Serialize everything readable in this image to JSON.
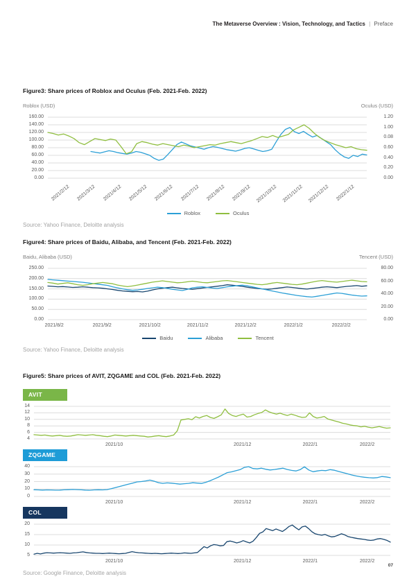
{
  "header": {
    "title": "The Metaverse Overview : Vision, Technology, and Tactics",
    "divider": "|",
    "section": "Preface"
  },
  "page_number": "07",
  "figure3": {
    "title": "Figure3: Share prices of Roblox and Oculus (Feb. 2021-Feb. 2022)",
    "left_axis_label": "Roblox (USD)",
    "right_axis_label": "Oculus (USD)",
    "source": "Source: Yahoo Finance, Deloitte analysis"
  },
  "figure4": {
    "title": "Figure4: Share prices of Baidu, Alibaba, and Tencent (Feb. 2021-Feb. 2022)",
    "left_axis_label": "Baidu, Alibaba (USD)",
    "right_axis_label": "Tencent (USD)",
    "source": "Source: Yahoo Finance, Deloitte analysis"
  },
  "figure5": {
    "title": "Figure5: Share prices of AVIT, ZQGAME and COL (Feb. 2021-Feb. 2022)",
    "source": "Source: Google Finance, Deloitte analysis",
    "badges": [
      {
        "label": "AVIT",
        "color": "#7AB648"
      },
      {
        "label": "ZQGAME",
        "color": "#1E9CD7"
      },
      {
        "label": "COL",
        "color": "#16365F"
      }
    ]
  },
  "colors": {
    "line_blue": "#2B9FD6",
    "line_green": "#8FBE3F",
    "line_navy": "#17456E",
    "grid": "#DCDCDC"
  },
  "chart_data": {
    "fig3": {
      "type": "line",
      "title": "Share prices of Roblox and Oculus (Feb. 2021-Feb. 2022)",
      "ymin": 0,
      "ymax": 160,
      "rmin": 0,
      "rmax": 1.2,
      "left_ticks": [
        "160.00",
        "140.00",
        "120.00",
        "100.00",
        "80.00",
        "60.00",
        "40.00",
        "20.00",
        "0.00"
      ],
      "right_ticks": [
        "1.20",
        "1.00",
        "0.08",
        "0.60",
        "0.40",
        "0.20",
        "0.00"
      ],
      "rotated": true,
      "x_labels": [
        {
          "t": "2021/2/12",
          "p": 0.065
        },
        {
          "t": "2021/3/12",
          "p": 0.146
        },
        {
          "t": "2021/4/12",
          "p": 0.228
        },
        {
          "t": "2021/5/12",
          "p": 0.309
        },
        {
          "t": "2021/6/12",
          "p": 0.39
        },
        {
          "t": "2021/7/12",
          "p": 0.472
        },
        {
          "t": "2021/8/12",
          "p": 0.553
        },
        {
          "t": "2021/9/12",
          "p": 0.634
        },
        {
          "t": "2021/10/12",
          "p": 0.715
        },
        {
          "t": "2021/11/12",
          "p": 0.797
        },
        {
          "t": "2021/12/12",
          "p": 0.878
        },
        {
          "t": "2022/1/12",
          "p": 0.959
        }
      ],
      "series": [
        {
          "name": "Roblox",
          "color": "#2B9FD6",
          "axis": "left",
          "xs": 0.135,
          "values": [
            70,
            68,
            66,
            69,
            72,
            70,
            67,
            65,
            63,
            66,
            70,
            68,
            64,
            60,
            52,
            47,
            50,
            62,
            75,
            88,
            95,
            90,
            85,
            82,
            79,
            76,
            80,
            83,
            81,
            78,
            75,
            73,
            71,
            74,
            78,
            80,
            77,
            73,
            70,
            72,
            76,
            96,
            115,
            128,
            133,
            122,
            117,
            123,
            115,
            108,
            112,
            104,
            96,
            88,
            75,
            64,
            56,
            52,
            60,
            57,
            63,
            61
          ]
        },
        {
          "name": "Oculus",
          "color": "#8FBE3F",
          "axis": "right",
          "xs": 0,
          "values": [
            0.9,
            0.88,
            0.85,
            0.87,
            0.83,
            0.78,
            0.7,
            0.66,
            0.72,
            0.78,
            0.76,
            0.74,
            0.77,
            0.75,
            0.62,
            0.48,
            0.52,
            0.68,
            0.72,
            0.7,
            0.67,
            0.65,
            0.68,
            0.66,
            0.64,
            0.62,
            0.65,
            0.63,
            0.6,
            0.62,
            0.64,
            0.66,
            0.65,
            0.68,
            0.7,
            0.72,
            0.7,
            0.68,
            0.71,
            0.74,
            0.78,
            0.82,
            0.8,
            0.84,
            0.8,
            0.83,
            0.86,
            0.95,
            1.0,
            1.05,
            0.98,
            0.88,
            0.8,
            0.74,
            0.7,
            0.66,
            0.63,
            0.6,
            0.62,
            0.58,
            0.56,
            0.55
          ]
        }
      ]
    },
    "fig4": {
      "type": "line",
      "title": "Share prices of Baidu, Alibaba, and Tencent (Feb. 2021-Feb. 2022)",
      "ymin": 0,
      "ymax": 250,
      "rmin": 0,
      "rmax": 80,
      "left_ticks": [
        "250.00",
        "200.00",
        "150.00",
        "100.00",
        "50.00",
        "0.00"
      ],
      "right_ticks": [
        "80.00",
        "60.00",
        "40.00",
        "20.00",
        "0.00"
      ],
      "rotated": false,
      "x_labels": [
        {
          "t": "2021/8/2",
          "p": 0.02
        },
        {
          "t": "2021/9/2",
          "p": 0.17
        },
        {
          "t": "2021/10/2",
          "p": 0.32
        },
        {
          "t": "2021/11/2",
          "p": 0.47
        },
        {
          "t": "2021/12/2",
          "p": 0.62
        },
        {
          "t": "2022/1/2",
          "p": 0.77
        },
        {
          "t": "2022/2/2",
          "p": 0.92
        }
      ],
      "series": [
        {
          "name": "Baidu",
          "color": "#17456E",
          "axis": "left",
          "xs": 0,
          "values": [
            164,
            162,
            160,
            161,
            159,
            157,
            158,
            160,
            158,
            156,
            155,
            153,
            150,
            147,
            143,
            140,
            138,
            136,
            137,
            135,
            139,
            145,
            150,
            153,
            156,
            158,
            155,
            152,
            150,
            148,
            151,
            154,
            157,
            160,
            163,
            166,
            170,
            168,
            165,
            162,
            158,
            155,
            152,
            150,
            148,
            150,
            153,
            156,
            159,
            157,
            154,
            151,
            149,
            152,
            155,
            158,
            160,
            158,
            156,
            159,
            162,
            164,
            166,
            163,
            165
          ]
        },
        {
          "name": "Alibaba",
          "color": "#2B9FD6",
          "axis": "left",
          "xs": 0,
          "values": [
            196,
            194,
            192,
            190,
            188,
            186,
            184,
            182,
            179,
            176,
            173,
            170,
            167,
            160,
            155,
            150,
            146,
            143,
            145,
            148,
            152,
            155,
            158,
            156,
            152,
            148,
            145,
            142,
            148,
            155,
            158,
            160,
            157,
            154,
            152,
            156,
            160,
            163,
            166,
            168,
            165,
            160,
            155,
            150,
            145,
            140,
            135,
            130,
            126,
            122,
            118,
            115,
            112,
            110,
            114,
            118,
            122,
            126,
            130,
            128,
            124,
            120,
            117,
            115,
            116
          ]
        },
        {
          "name": "Tencent",
          "color": "#8FBE3F",
          "axis": "right",
          "xs": 0,
          "values": [
            58,
            57,
            55.5,
            56.5,
            57.5,
            56,
            54.5,
            53.5,
            54.5,
            56,
            57,
            58,
            57,
            56,
            54,
            52.5,
            51.5,
            52.5,
            54,
            55.5,
            57,
            58.5,
            59.5,
            60.5,
            59.5,
            58.5,
            57.5,
            58,
            59,
            60,
            59,
            58,
            57.5,
            58.5,
            59.5,
            60.5,
            61,
            60,
            59,
            58,
            57,
            56,
            55,
            54.5,
            55.5,
            57,
            58,
            57,
            56,
            55,
            54.5,
            55.5,
            57,
            58.5,
            60,
            61,
            60,
            59,
            58.5,
            59.5,
            60.5,
            61.5,
            60.5,
            59.5,
            59
          ]
        }
      ]
    },
    "avit": {
      "type": "line",
      "title": "AVIT share price",
      "ymin": 4,
      "ymax": 14,
      "left_ticks": [
        "14",
        "12",
        "10",
        "8",
        "6",
        "4"
      ],
      "right_ticks": [],
      "rotated": false,
      "x_labels": [
        {
          "t": "2021/10",
          "p": 0.225
        },
        {
          "t": "2021/12",
          "p": 0.585
        },
        {
          "t": "2022/1",
          "p": 0.775
        },
        {
          "t": "2022/2",
          "p": 0.935
        }
      ],
      "series": [
        {
          "name": "AVIT",
          "color": "#8FBE3F",
          "axis": "left",
          "xs": 0,
          "values": [
            5.3,
            5.2,
            5.1,
            5.2,
            5.0,
            4.9,
            5.0,
            5.1,
            4.9,
            4.8,
            4.9,
            5.1,
            5.3,
            5.2,
            5.1,
            5.2,
            5.3,
            5.1,
            5.0,
            4.8,
            4.7,
            4.9,
            5.2,
            5.1,
            5.0,
            4.9,
            5.0,
            5.1,
            5.0,
            4.9,
            4.8,
            4.6,
            4.7,
            4.9,
            5.0,
            4.8,
            4.7,
            4.9,
            5.2,
            6.5,
            9.8,
            10.0,
            10.2,
            9.9,
            10.8,
            10.4,
            10.9,
            11.2,
            10.6,
            10.3,
            10.8,
            11.4,
            13.2,
            11.8,
            11.2,
            10.9,
            11.3,
            11.6,
            10.7,
            10.9,
            11.4,
            11.8,
            12.1,
            12.9,
            12.3,
            11.9,
            11.6,
            11.9,
            11.5,
            11.2,
            11.6,
            11.3,
            10.9,
            10.6,
            10.7,
            12.0,
            10.9,
            10.4,
            10.6,
            10.9,
            10.1,
            9.8,
            9.5,
            9.2,
            8.8,
            8.6,
            8.3,
            8.1,
            8.0,
            7.7,
            7.9,
            7.6,
            7.4,
            7.6,
            7.8,
            7.5,
            7.3,
            7.4
          ]
        }
      ]
    },
    "zqgame": {
      "type": "line",
      "title": "ZQGAME share price",
      "ymin": 0,
      "ymax": 40,
      "left_ticks": [
        "40",
        "30",
        "20",
        "10",
        "0"
      ],
      "right_ticks": [],
      "rotated": false,
      "x_labels": [
        {
          "t": "2021/10",
          "p": 0.225
        },
        {
          "t": "2021/12",
          "p": 0.585
        },
        {
          "t": "2022/1",
          "p": 0.775
        },
        {
          "t": "2022/2",
          "p": 0.935
        }
      ],
      "series": [
        {
          "name": "ZQGAME",
          "color": "#2B9FD6",
          "axis": "left",
          "xs": 0,
          "values": [
            9.0,
            8.8,
            8.6,
            8.8,
            8.7,
            8.5,
            8.6,
            8.9,
            9.1,
            9.4,
            9.2,
            8.9,
            8.6,
            8.4,
            8.8,
            9.0,
            8.8,
            9.2,
            10.5,
            12.0,
            13.5,
            15.0,
            16.5,
            18.0,
            19.5,
            20.0,
            20.8,
            22.0,
            20.5,
            18.5,
            17.6,
            18.2,
            17.9,
            17.2,
            16.6,
            17.1,
            17.6,
            18.4,
            18.0,
            17.5,
            19.0,
            21.0,
            23.5,
            26.0,
            29.0,
            32.0,
            33.0,
            34.5,
            36.0,
            39.0,
            40.0,
            37.5,
            37.0,
            38.0,
            36.5,
            35.5,
            36.2,
            37.0,
            38.0,
            36.2,
            35.0,
            34.2,
            36.0,
            39.8,
            35.5,
            33.2,
            34.2,
            35.0,
            34.6,
            36.0,
            35.2,
            33.5,
            32.0,
            30.5,
            28.8,
            27.5,
            26.5,
            25.8,
            25.2,
            24.8,
            25.3,
            26.8,
            26.2,
            25.2
          ]
        }
      ]
    },
    "col": {
      "type": "line",
      "title": "COL share price",
      "ymin": 5,
      "ymax": 20,
      "left_ticks": [
        "20",
        "15",
        "10",
        "5"
      ],
      "right_ticks": [],
      "rotated": false,
      "x_labels": [
        {
          "t": "2021/10",
          "p": 0.225
        },
        {
          "t": "2021/12",
          "p": 0.585
        },
        {
          "t": "2022/1",
          "p": 0.775
        },
        {
          "t": "2022/2",
          "p": 0.935
        }
      ],
      "series": [
        {
          "name": "COL",
          "color": "#17456E",
          "axis": "left",
          "xs": 0,
          "values": [
            5.6,
            6.0,
            5.7,
            6.1,
            6.3,
            6.2,
            6.1,
            6.2,
            6.3,
            6.2,
            6.1,
            6.0,
            6.2,
            6.3,
            6.5,
            6.7,
            6.4,
            6.2,
            6.1,
            6.0,
            6.0,
            5.9,
            6.0,
            6.1,
            6.0,
            5.9,
            5.8,
            5.9,
            6.0,
            6.4,
            6.8,
            6.5,
            6.3,
            6.2,
            6.1,
            6.0,
            5.9,
            6.0,
            5.9,
            5.8,
            5.9,
            6.0,
            6.1,
            6.0,
            5.9,
            6.0,
            6.2,
            6.1,
            6.0,
            6.2,
            6.4,
            7.8,
            9.2,
            8.6,
            9.6,
            10.2,
            10.0,
            9.6,
            9.8,
            11.6,
            11.9,
            11.5,
            11.0,
            11.4,
            12.1,
            11.5,
            11.0,
            11.8,
            13.6,
            15.6,
            16.3,
            17.9,
            17.4,
            16.9,
            17.7,
            17.1,
            16.5,
            17.6,
            18.9,
            19.6,
            18.4,
            17.3,
            18.7,
            19.1,
            17.9,
            16.4,
            15.4,
            15.0,
            14.7,
            15.1,
            14.4,
            13.9,
            14.1,
            14.7,
            15.4,
            14.9,
            14.1,
            13.7,
            13.4,
            13.1,
            12.9,
            12.7,
            12.4,
            12.2,
            12.4,
            12.9,
            13.1,
            12.7,
            12.2,
            11.4
          ]
        }
      ]
    }
  }
}
